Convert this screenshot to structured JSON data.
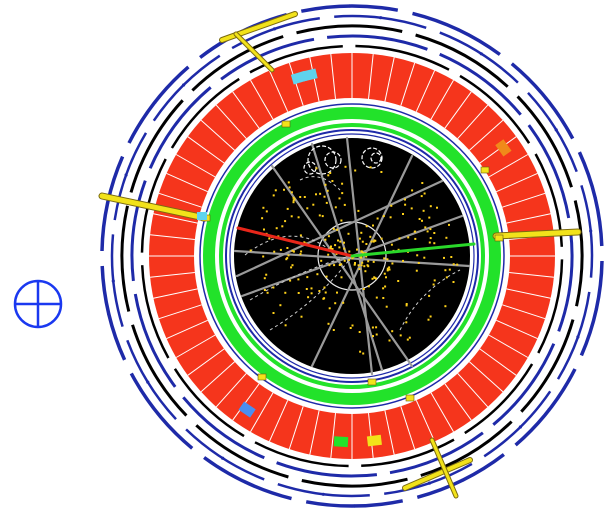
{
  "colors": {
    "background": "#ffffff",
    "muon_chambers": "#1e2aa8",
    "muon_gaps": "#000000",
    "calorimeter_blocks": "#f5351c",
    "calorimeter_edges": "#ffffff",
    "inner_calorimeter": "#22e22a",
    "tracker_background": "#000000",
    "tracks": "#9a9a9a",
    "hits": "#ffd21a",
    "electron_track": "#e8261a",
    "green_track": "#2ad82a",
    "cluster_highlights": "#f2e21a",
    "special_cells": [
      "#5fd3ee",
      "#f08a1a",
      "#4a8ef0",
      "#22e22a"
    ]
  },
  "icons": {
    "axis_symbol": "crosshair-circle-icon"
  }
}
